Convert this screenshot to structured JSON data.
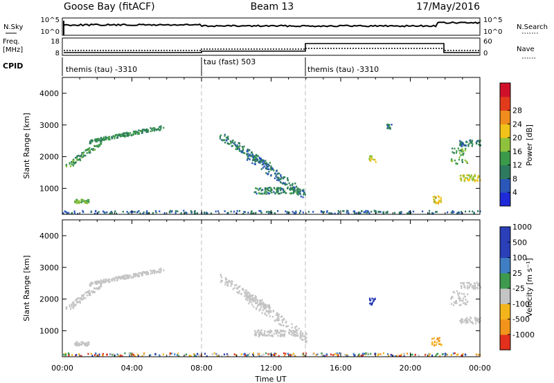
{
  "header": {
    "station": "Goose Bay (fitACF)",
    "beam": "Beam 13",
    "date": "17/May/2016"
  },
  "noise_panel": {
    "left_label": "N.Sky",
    "right_label": "N.Search",
    "left_ticks": [
      "10^5",
      "10^0"
    ],
    "right_ticks": [
      "10^5",
      "10^0"
    ]
  },
  "freq_panel": {
    "left_label_top": "Freq.",
    "left_label_bottom": "[MHz]",
    "right_label": "Nave",
    "left_ticks": [
      "18",
      "8"
    ],
    "right_ticks": [
      "60",
      "0"
    ]
  },
  "cpid": {
    "label": "CPID",
    "segments": [
      {
        "label": "themis (tau) -3310"
      },
      {
        "label": "tau (fast) 503"
      },
      {
        "label": "themis (tau) -3310"
      }
    ]
  },
  "time_axis": {
    "xlabel": "Time UT",
    "ticks": [
      "00:00",
      "04:00",
      "08:00",
      "12:00",
      "16:00",
      "20:00",
      "00:00"
    ]
  },
  "power_colorbar": {
    "label": "Power [dB]",
    "ticks": [
      "4",
      "8",
      "12",
      "16",
      "20",
      "24",
      "28"
    ]
  },
  "velocity_colorbar": {
    "label": "Velocity [m s⁻¹]",
    "ticks": [
      "-1000",
      "-500",
      "-100",
      "-25",
      "25",
      "100",
      "500",
      "1000"
    ]
  },
  "chart_data": [
    {
      "type": "heatmap",
      "title": "",
      "xlabel": "",
      "ylabel": "Slant Range [km]",
      "x_unit": "hours UT",
      "xlim": [
        0,
        24
      ],
      "ylim": [
        180,
        4500
      ],
      "yticks": [
        1000,
        2000,
        3000,
        4000
      ],
      "cpid_boundaries_hours": [
        8.0,
        14.0
      ],
      "colorbar": {
        "label": "Power [dB]",
        "range": [
          0,
          32
        ]
      },
      "regions": [
        {
          "t": [
            0.1,
            2.2
          ],
          "r": [
            1650,
            2500
          ],
          "rising": true,
          "value": 12
        },
        {
          "t": [
            1.5,
            5.8
          ],
          "r": [
            2500,
            2950
          ],
          "rising": true,
          "value": 10
        },
        {
          "t": [
            0.6,
            1.5
          ],
          "r": [
            550,
            680
          ],
          "value": 14
        },
        {
          "t": [
            0.0,
            24.0
          ],
          "r": [
            180,
            320
          ],
          "value": 6
        },
        {
          "t": [
            9.0,
            12.0
          ],
          "r": [
            2700,
            1700
          ],
          "rising": false,
          "value": 8
        },
        {
          "t": [
            10.5,
            14.0
          ],
          "r": [
            2100,
            800
          ],
          "rising": false,
          "value": 7
        },
        {
          "t": [
            11.0,
            13.5
          ],
          "r": [
            850,
            1050
          ],
          "value": 9
        },
        {
          "t": [
            17.6,
            18.0
          ],
          "r": [
            1850,
            2050
          ],
          "value": 18
        },
        {
          "t": [
            18.6,
            18.9
          ],
          "r": [
            2900,
            3050
          ],
          "value": 8
        },
        {
          "t": [
            21.2,
            21.8
          ],
          "r": [
            550,
            800
          ],
          "value": 20
        },
        {
          "t": [
            22.8,
            24.0
          ],
          "r": [
            2350,
            2550
          ],
          "value": 8
        },
        {
          "t": [
            22.3,
            23.3
          ],
          "r": [
            1800,
            2300
          ],
          "value": 12
        },
        {
          "t": [
            22.8,
            24.0
          ],
          "r": [
            1250,
            1450
          ],
          "value": 18
        }
      ]
    },
    {
      "type": "heatmap",
      "title": "",
      "xlabel": "Time UT",
      "ylabel": "Slant Range [km]",
      "x_unit": "hours UT",
      "xlim": [
        0,
        24
      ],
      "ylim": [
        180,
        4500
      ],
      "yticks": [
        1000,
        2000,
        3000,
        4000
      ],
      "colorbar": {
        "label": "Velocity [m s⁻¹]",
        "range": [
          -1000,
          1000
        ]
      },
      "regions": [
        {
          "t": [
            0.1,
            2.2
          ],
          "r": [
            1650,
            2500
          ],
          "rising": true,
          "value": 0
        },
        {
          "t": [
            1.5,
            5.8
          ],
          "r": [
            2500,
            2950
          ],
          "rising": true,
          "value": 0
        },
        {
          "t": [
            0.6,
            1.5
          ],
          "r": [
            550,
            680
          ],
          "value": 0
        },
        {
          "t": [
            0.0,
            24.0
          ],
          "r": [
            180,
            320
          ],
          "value": 50
        },
        {
          "t": [
            9.0,
            12.0
          ],
          "r": [
            2700,
            1700
          ],
          "rising": false,
          "value": 0
        },
        {
          "t": [
            10.5,
            14.0
          ],
          "r": [
            2100,
            800
          ],
          "rising": false,
          "value": 0
        },
        {
          "t": [
            11.0,
            13.5
          ],
          "r": [
            850,
            1050
          ],
          "value": 0
        },
        {
          "t": [
            17.6,
            18.0
          ],
          "r": [
            1850,
            2050
          ],
          "value": 800
        },
        {
          "t": [
            21.2,
            21.8
          ],
          "r": [
            550,
            800
          ],
          "value": -100
        },
        {
          "t": [
            22.8,
            24.0
          ],
          "r": [
            2350,
            2550
          ],
          "value": 0
        },
        {
          "t": [
            22.3,
            23.3
          ],
          "r": [
            1800,
            2300
          ],
          "value": 0
        },
        {
          "t": [
            22.8,
            24.0
          ],
          "r": [
            1250,
            1450
          ],
          "value": 0
        }
      ]
    }
  ]
}
